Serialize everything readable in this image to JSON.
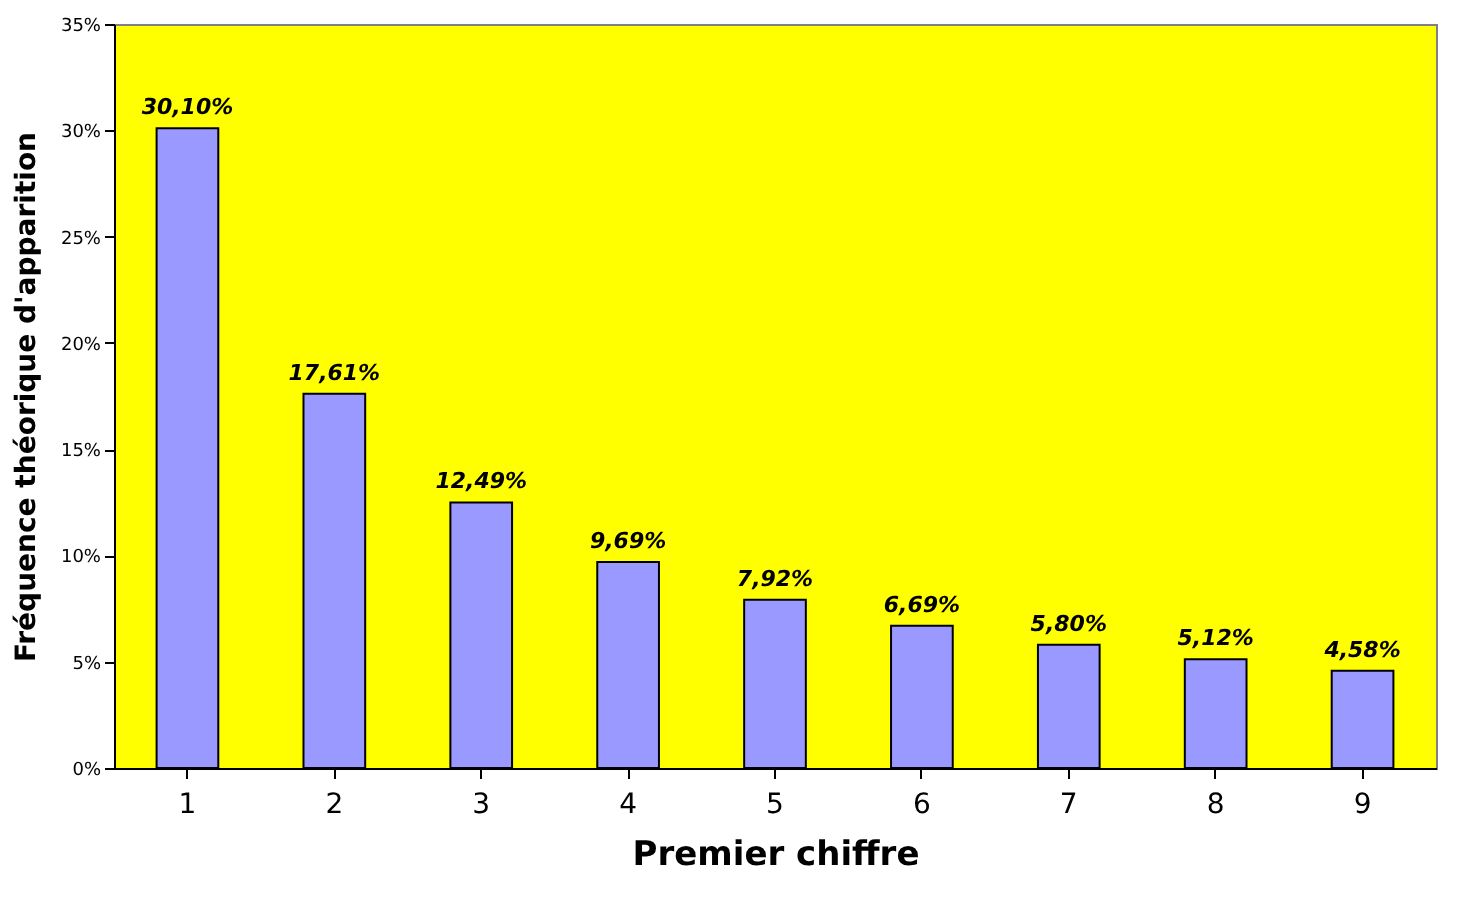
{
  "chart_data": {
    "type": "bar",
    "xlabel": "Premier chiffre",
    "ylabel": "Fréquence théorique d'apparition",
    "categories": [
      "1",
      "2",
      "3",
      "4",
      "5",
      "6",
      "7",
      "8",
      "9"
    ],
    "values": [
      30.1,
      17.61,
      12.49,
      9.69,
      7.92,
      6.69,
      5.8,
      5.12,
      4.58
    ],
    "value_labels": [
      "30,10%",
      "17,61%",
      "12,49%",
      "9,69%",
      "7,92%",
      "6,69%",
      "5,80%",
      "5,12%",
      "4,58%"
    ],
    "color": "#9999ff",
    "ylim": [
      0,
      35
    ],
    "yticks": [
      {
        "value": 0,
        "label": "0%"
      },
      {
        "value": 5,
        "label": "5%"
      },
      {
        "value": 10,
        "label": "10%"
      },
      {
        "value": 15,
        "label": "15%"
      },
      {
        "value": 20,
        "label": "20%"
      },
      {
        "value": 25,
        "label": "25%"
      },
      {
        "value": 30,
        "label": "30%"
      },
      {
        "value": 35,
        "label": "35%"
      }
    ],
    "grid": false
  }
}
